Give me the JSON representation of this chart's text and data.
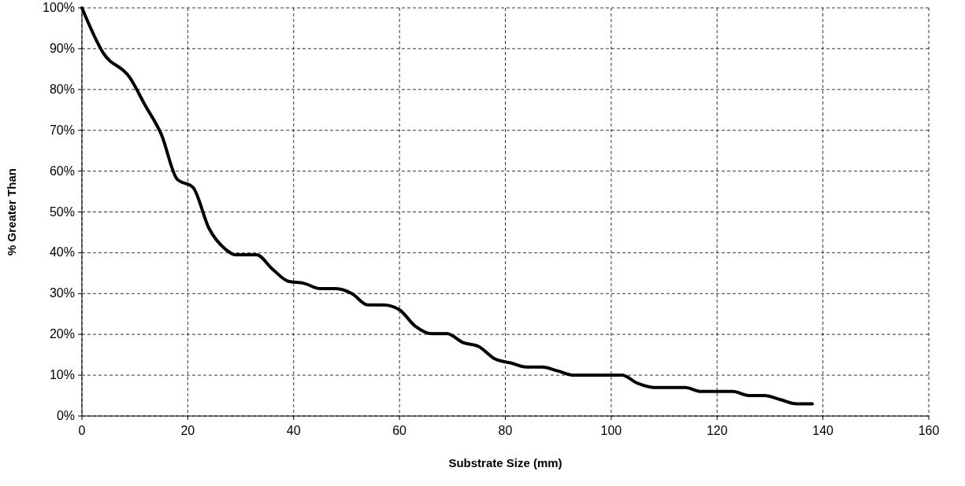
{
  "chart_data": {
    "type": "line",
    "xlabel": "Substrate Size (mm)",
    "ylabel": "% Greater Than",
    "x": [
      0,
      4,
      9,
      12,
      15,
      18,
      21,
      24,
      27,
      29,
      33,
      36,
      39,
      42,
      45,
      48,
      51,
      54,
      57,
      60,
      63,
      66,
      69,
      72,
      75,
      78,
      81,
      84,
      87,
      90,
      93,
      96,
      99,
      102,
      105,
      108,
      111,
      114,
      117,
      120,
      123,
      126,
      129,
      132,
      135,
      138
    ],
    "series": [
      {
        "color": "#000000",
        "values": [
          100,
          89,
          83,
          76,
          69,
          58,
          56,
          46,
          41,
          39.5,
          39.5,
          36,
          33,
          32.5,
          31.2,
          31.2,
          30,
          27.2,
          27.2,
          26,
          22,
          20.2,
          20.2,
          18,
          17,
          14,
          13,
          12,
          12,
          11,
          10,
          10,
          10,
          10,
          8,
          7,
          7,
          7,
          6,
          6,
          6,
          5,
          5,
          4,
          3,
          3
        ]
      }
    ],
    "xlim": [
      0,
      160
    ],
    "xticks": [
      0,
      20,
      40,
      60,
      80,
      100,
      120,
      140,
      160
    ],
    "ylim": [
      0,
      100
    ],
    "yticks": [
      {
        "value": 0,
        "label": "0%"
      },
      {
        "value": 10,
        "label": "10%"
      },
      {
        "value": 20,
        "label": "20%"
      },
      {
        "value": 30,
        "label": "30%"
      },
      {
        "value": 40,
        "label": "40%"
      },
      {
        "value": 50,
        "label": "50%"
      },
      {
        "value": 60,
        "label": "60%"
      },
      {
        "value": 70,
        "label": "70%"
      },
      {
        "value": 80,
        "label": "80%"
      },
      {
        "value": 90,
        "label": "90%"
      },
      {
        "value": 100,
        "label": "100%"
      }
    ],
    "grid": true,
    "marker": "none",
    "line_style": "solid"
  }
}
